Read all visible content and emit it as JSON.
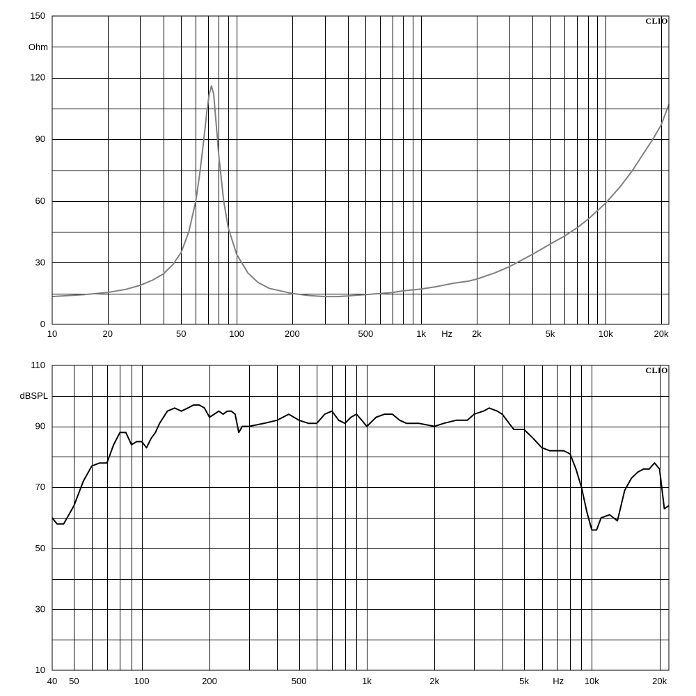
{
  "chart_data": [
    {
      "type": "line",
      "brand": "CLIO",
      "ylabel": "Ohm",
      "x_unit_label": "Hz",
      "x_scale": "log",
      "xlim": [
        10,
        22000
      ],
      "ylim": [
        0,
        150
      ],
      "y_ticks": [
        0,
        30,
        60,
        90,
        120,
        150
      ],
      "x_tick_labels": [
        {
          "value": 10,
          "label": "10"
        },
        {
          "value": 20,
          "label": "20"
        },
        {
          "value": 50,
          "label": "50"
        },
        {
          "value": 100,
          "label": "100"
        },
        {
          "value": 200,
          "label": "200"
        },
        {
          "value": 500,
          "label": "500"
        },
        {
          "value": 1000,
          "label": "1k"
        },
        {
          "value": 2000,
          "label": "2k"
        },
        {
          "value": 5000,
          "label": "5k"
        },
        {
          "value": 10000,
          "label": "10k"
        },
        {
          "value": 20000,
          "label": "20k"
        }
      ],
      "grid": true,
      "line_color": "#808080",
      "series": [
        {
          "x": [
            10,
            15,
            20,
            25,
            30,
            35,
            40,
            45,
            50,
            55,
            60,
            63,
            66,
            69,
            71,
            73,
            75,
            77,
            80,
            85,
            90,
            100,
            115,
            130,
            150,
            200,
            250,
            300,
            350,
            400,
            500,
            600,
            700,
            800,
            1000,
            1200,
            1500,
            1800,
            2000,
            2500,
            3000,
            4000,
            5000,
            6000,
            7000,
            8000,
            10000,
            12000,
            14000,
            16000,
            18000,
            20000,
            22000
          ],
          "y": [
            13.5,
            14.5,
            15.5,
            17,
            19,
            21.5,
            24.5,
            29,
            35,
            45,
            60,
            73,
            88,
            104,
            112,
            116,
            112,
            100,
            82,
            60,
            47,
            34,
            25,
            20.5,
            17.5,
            15,
            14,
            13.5,
            13.5,
            13.8,
            14.5,
            15,
            15.5,
            16.3,
            17.2,
            18.3,
            20,
            21,
            22,
            25,
            28,
            34,
            39,
            43,
            47,
            51,
            59,
            67,
            75,
            83,
            90,
            97,
            107
          ]
        }
      ]
    },
    {
      "type": "line",
      "brand": "CLIO",
      "ylabel": "dBSPL",
      "x_unit_label": "Hz",
      "x_scale": "log",
      "xlim": [
        40,
        22000
      ],
      "ylim": [
        10,
        110
      ],
      "y_ticks": [
        10,
        30,
        50,
        70,
        90,
        110
      ],
      "x_tick_labels": [
        {
          "value": 40,
          "label": "40"
        },
        {
          "value": 50,
          "label": "50"
        },
        {
          "value": 100,
          "label": "100"
        },
        {
          "value": 200,
          "label": "200"
        },
        {
          "value": 500,
          "label": "500"
        },
        {
          "value": 1000,
          "label": "1k"
        },
        {
          "value": 2000,
          "label": "2k"
        },
        {
          "value": 5000,
          "label": "5k"
        },
        {
          "value": 10000,
          "label": "10k"
        },
        {
          "value": 20000,
          "label": "20k"
        }
      ],
      "grid": true,
      "line_color": "#000000",
      "series": [
        {
          "x": [
            40,
            42,
            45,
            50,
            55,
            60,
            65,
            70,
            75,
            80,
            85,
            90,
            95,
            100,
            105,
            110,
            115,
            120,
            130,
            140,
            150,
            160,
            170,
            180,
            190,
            200,
            210,
            220,
            230,
            240,
            250,
            260,
            270,
            280,
            300,
            350,
            400,
            450,
            500,
            550,
            600,
            650,
            700,
            750,
            800,
            850,
            900,
            950,
            1000,
            1100,
            1200,
            1300,
            1400,
            1500,
            1700,
            2000,
            2200,
            2500,
            2800,
            3000,
            3300,
            3500,
            3800,
            4000,
            4500,
            5000,
            5500,
            6000,
            6500,
            7000,
            7500,
            8000,
            8500,
            9000,
            9500,
            10000,
            10500,
            11000,
            12000,
            13000,
            14000,
            15000,
            16000,
            17000,
            18000,
            19000,
            20000,
            21000,
            22000
          ],
          "y": [
            60,
            58,
            58,
            64,
            72,
            77,
            78,
            78,
            84,
            88,
            88,
            84,
            85,
            85,
            83,
            86,
            88,
            91,
            95,
            96,
            95,
            96,
            97,
            97,
            96,
            93,
            94,
            95,
            94,
            95,
            95,
            94,
            88,
            90,
            90,
            91,
            92,
            94,
            92,
            91,
            91,
            94,
            95,
            92,
            91,
            93,
            94,
            92,
            90,
            93,
            94,
            94,
            92,
            91,
            91,
            90,
            91,
            92,
            92,
            94,
            95,
            96,
            95,
            94,
            89,
            89,
            86,
            83,
            82,
            82,
            82,
            81,
            76,
            70,
            62,
            56,
            56,
            60,
            61,
            59,
            69,
            73,
            75,
            76,
            76,
            78,
            76,
            63,
            64
          ]
        }
      ]
    }
  ]
}
